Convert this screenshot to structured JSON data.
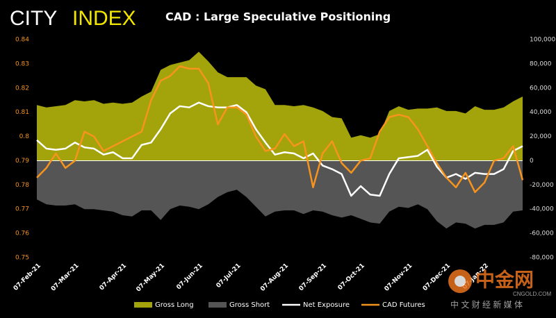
{
  "header": {
    "brand_1": "CITY",
    "brand_2": "INDEX"
  },
  "watermark": {
    "name": "中金网",
    "site": "CNGOLD.COM",
    "tagline": "中 文 财 经 新 媒 体"
  },
  "chart_data": {
    "type": "area-line",
    "title": "CAD : Large Speculative Positioning",
    "categories": [
      "07-Feb-21",
      null,
      null,
      null,
      "07-Mar-21",
      null,
      null,
      null,
      null,
      "07-Apr-21",
      null,
      null,
      null,
      "07-May-21",
      null,
      null,
      null,
      "07-Jun-21",
      null,
      null,
      null,
      "07-Jul-21",
      null,
      null,
      null,
      null,
      "07-Aug-21",
      null,
      null,
      null,
      "07-Sep-21",
      null,
      null,
      null,
      "07-Oct-21",
      null,
      null,
      null,
      null,
      "07-Nov-21",
      null,
      null,
      null,
      "07-Dec-21",
      null,
      null,
      null,
      "07-Jan-22",
      null,
      null,
      null,
      null
    ],
    "ylim": [
      0.75,
      0.84
    ],
    "yticks": [
      0.75,
      0.76,
      0.77,
      0.78,
      0.79,
      0.8,
      0.81,
      0.82,
      0.83,
      0.84
    ],
    "y2lim": [
      -80000,
      100000
    ],
    "y2ticks": [
      {
        "value": -80000,
        "label": "-80,000"
      },
      {
        "value": -60000,
        "label": "-60,000"
      },
      {
        "value": -40000,
        "label": "-40,000"
      },
      {
        "value": -20000,
        "label": "-20,000"
      },
      0,
      {
        "value": 20000,
        "label": "20,000"
      },
      {
        "value": 40000,
        "label": "40,000"
      },
      {
        "value": 60000,
        "label": "60,000"
      },
      {
        "value": 80000,
        "label": "80,000"
      },
      {
        "value": 100000,
        "label": "100,000"
      }
    ],
    "legend": "bottom",
    "series": [
      {
        "name": "Gross Long",
        "kind": "area",
        "axis": "y2",
        "color": "#a3a30c",
        "values": [
          46000,
          44000,
          45000,
          46000,
          50000,
          49000,
          50000,
          47000,
          48000,
          47000,
          48000,
          53000,
          57000,
          75000,
          79000,
          81000,
          83000,
          90000,
          82000,
          73000,
          69000,
          69000,
          69000,
          62000,
          59000,
          46000,
          46000,
          45000,
          46000,
          44000,
          41000,
          36000,
          35000,
          19000,
          21000,
          19000,
          22000,
          41000,
          45000,
          42000,
          43000,
          43000,
          44000,
          41000,
          41000,
          39000,
          45000,
          42000,
          42000,
          44000,
          49000,
          53000
        ]
      },
      {
        "name": "Gross Short",
        "kind": "area",
        "axis": "y2",
        "color": "#555555",
        "values": [
          -32000,
          -36000,
          -37000,
          -37000,
          -36000,
          -40000,
          -40000,
          -41000,
          -42000,
          -45000,
          -46000,
          -41000,
          -41000,
          -49000,
          -40000,
          -37000,
          -38000,
          -40000,
          -36000,
          -30000,
          -26000,
          -24000,
          -30000,
          -38000,
          -46000,
          -42000,
          -41000,
          -41000,
          -44000,
          -41000,
          -42000,
          -45000,
          -47000,
          -45000,
          -48000,
          -51000,
          -52000,
          -42000,
          -38000,
          -39000,
          -36000,
          -40000,
          -50000,
          -56000,
          -51000,
          -52000,
          -56000,
          -53000,
          -53000,
          -51000,
          -42000,
          -41000
        ]
      },
      {
        "name": "Net Exposure",
        "kind": "line",
        "axis": "y2",
        "color": "#ffffff",
        "values": [
          17000,
          10000,
          9000,
          10000,
          15000,
          11000,
          10000,
          5000,
          7000,
          2000,
          2000,
          13000,
          15000,
          26000,
          39000,
          45000,
          44000,
          48000,
          45000,
          44000,
          44000,
          46000,
          40000,
          26000,
          15000,
          5000,
          7000,
          6000,
          2000,
          6000,
          -4000,
          -7000,
          -11000,
          -29000,
          -21000,
          -28000,
          -29000,
          -11000,
          2000,
          3000,
          4000,
          9000,
          -5000,
          -14000,
          -11000,
          -15000,
          -10000,
          -11000,
          -11000,
          -7000,
          8000,
          12000
        ]
      },
      {
        "name": "CAD Futures",
        "kind": "line",
        "axis": "y",
        "color": "#f7941d",
        "values": [
          0.783,
          0.787,
          0.793,
          0.787,
          0.79,
          0.802,
          0.8,
          0.794,
          0.796,
          0.798,
          0.8,
          0.802,
          0.815,
          0.823,
          0.825,
          0.829,
          0.828,
          0.828,
          0.822,
          0.805,
          0.812,
          0.812,
          0.809,
          0.8,
          0.794,
          0.795,
          0.801,
          0.796,
          0.798,
          0.779,
          0.793,
          0.798,
          0.789,
          0.785,
          0.79,
          0.791,
          0.802,
          0.808,
          0.809,
          0.808,
          0.803,
          0.796,
          0.789,
          0.783,
          0.779,
          0.785,
          0.777,
          0.781,
          0.79,
          0.791,
          0.796,
          0.782
        ]
      }
    ]
  }
}
